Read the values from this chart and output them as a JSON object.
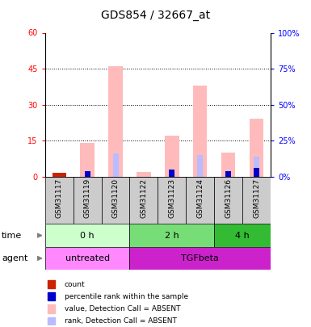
{
  "title": "GDS854 / 32667_at",
  "samples": [
    "GSM31117",
    "GSM31119",
    "GSM31120",
    "GSM31122",
    "GSM31123",
    "GSM31124",
    "GSM31126",
    "GSM31127"
  ],
  "count_values": [
    1.5,
    0,
    0,
    0,
    0,
    0,
    0,
    0
  ],
  "rank_values": [
    0,
    4,
    0,
    0,
    5,
    0,
    4,
    6
  ],
  "absent_count": [
    0,
    14,
    46,
    2,
    17,
    38,
    10,
    24
  ],
  "absent_rank": [
    0,
    0,
    16,
    0,
    0,
    15,
    0,
    14
  ],
  "ylim_left": [
    0,
    60
  ],
  "ylim_right": [
    0,
    100
  ],
  "yticks_left": [
    0,
    15,
    30,
    45,
    60
  ],
  "yticks_right": [
    0,
    25,
    50,
    75,
    100
  ],
  "color_count": "#cc2200",
  "color_rank": "#0000cc",
  "color_absent_count": "#ffbbbb",
  "color_absent_rank": "#bbbbff",
  "color_bg_sample": "#cccccc",
  "color_time_0": "#ccffcc",
  "color_time_2": "#77dd77",
  "color_time_4": "#33bb33",
  "color_agent_un": "#ff88ff",
  "color_agent_tgf": "#cc22cc",
  "legend_items": [
    {
      "color": "#cc2200",
      "label": "count"
    },
    {
      "color": "#0000cc",
      "label": "percentile rank within the sample"
    },
    {
      "color": "#ffbbbb",
      "label": "value, Detection Call = ABSENT"
    },
    {
      "color": "#bbbbff",
      "label": "rank, Detection Call = ABSENT"
    }
  ],
  "time_groups": [
    {
      "label": "0 h",
      "start": 0,
      "end": 3
    },
    {
      "label": "2 h",
      "start": 3,
      "end": 6
    },
    {
      "label": "4 h",
      "start": 6,
      "end": 8
    }
  ],
  "agent_groups": [
    {
      "label": "untreated",
      "start": 0,
      "end": 3
    },
    {
      "label": "TGFbeta",
      "start": 3,
      "end": 8
    }
  ]
}
